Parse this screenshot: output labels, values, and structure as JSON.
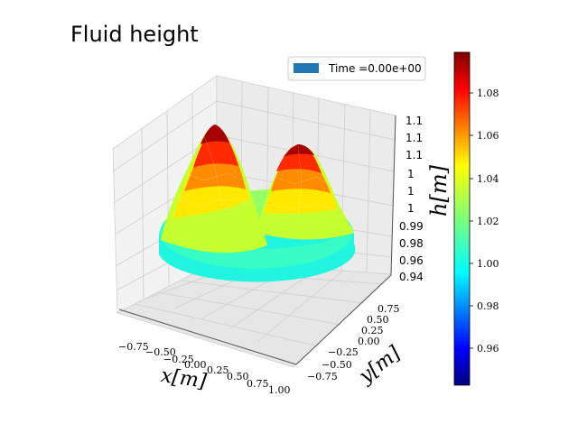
{
  "chart_data": {
    "type": "surface3d",
    "title": "Fluid height",
    "legend": {
      "label": "Time =0.00e+00",
      "placement": "top-right",
      "color": "#1f77b4"
    },
    "xlabel": "x[m]",
    "ylabel": "y[m]",
    "zlabel": "h[m]",
    "x_ticks": [
      "−0.75",
      "−0.50",
      "−0.25",
      "0.00",
      "0.25",
      "0.50",
      "0.75",
      "1.00"
    ],
    "y_ticks": [
      "−0.75",
      "−0.50",
      "−0.25",
      "0.00",
      "0.25",
      "0.50",
      "0.75"
    ],
    "z_ticks": [
      "0.94",
      "0.96",
      "0.98",
      "0.99",
      "1",
      "1",
      "1",
      "1.1",
      "1.1",
      "1.1"
    ],
    "xlim": [
      -1.0,
      1.0
    ],
    "ylim": [
      -1.0,
      1.0
    ],
    "zlim": [
      0.94,
      1.1
    ],
    "surface": {
      "domain": "disk",
      "radius": 1.0,
      "base_height": 1.0,
      "bumps": [
        {
          "x": -0.45,
          "y": 0.35,
          "amplitude": 0.1,
          "width": 0.3
        },
        {
          "x": 0.45,
          "y": 0.35,
          "amplitude": 0.1,
          "width": 0.3
        }
      ]
    },
    "colorbar": {
      "colormap": "jet",
      "min": 0.942,
      "max": 1.098,
      "ticks": [
        "0.96",
        "0.98",
        "1.00",
        "1.02",
        "1.04",
        "1.06",
        "1.08"
      ]
    },
    "grid": true
  }
}
